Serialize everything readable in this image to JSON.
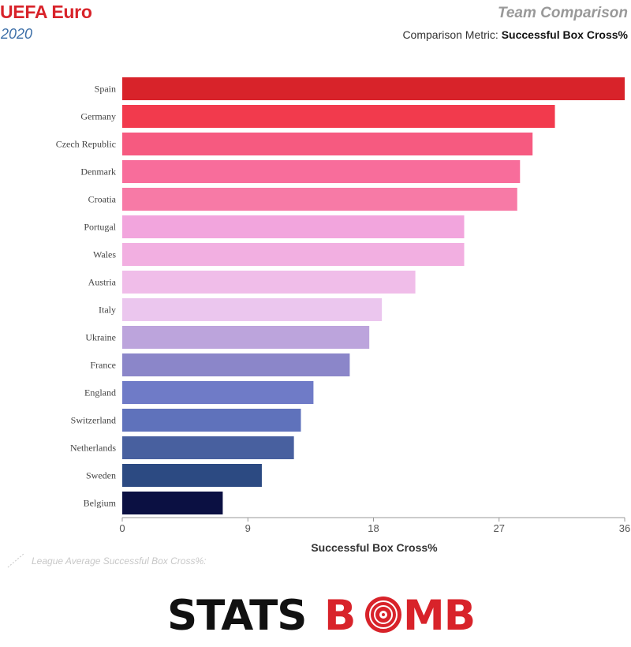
{
  "header": {
    "title": "UEFA Euro",
    "season": "2020",
    "subtitle": "Team Comparison",
    "metric_prefix": "Comparison Metric:",
    "metric_name": "Successful Box Cross%"
  },
  "league_average_label": "League Average Successful Box Cross%:",
  "logo": {
    "part1": "STATS",
    "part2": "B",
    "part3": "MB",
    "brand_color": "#d8232a"
  },
  "chart_data": {
    "type": "bar",
    "orientation": "horizontal",
    "categories": [
      "Spain",
      "Germany",
      "Czech Republic",
      "Denmark",
      "Croatia",
      "Portugal",
      "Wales",
      "Austria",
      "Italy",
      "Ukraine",
      "France",
      "England",
      "Switzerland",
      "Netherlands",
      "Sweden",
      "Belgium"
    ],
    "values": [
      36.0,
      31.0,
      29.4,
      28.5,
      28.3,
      24.5,
      24.5,
      21.0,
      18.6,
      17.7,
      16.3,
      13.7,
      12.8,
      12.3,
      10.0,
      7.2
    ],
    "colors": [
      "#d8232a",
      "#f23a4d",
      "#f65a80",
      "#f86d9b",
      "#f77aa6",
      "#f2a5dd",
      "#f2afe1",
      "#f0bde9",
      "#ebc6ee",
      "#bca4dc",
      "#8b86c9",
      "#6f7bc7",
      "#5f72bb",
      "#48609f",
      "#2c4a82",
      "#0b1042"
    ],
    "xlabel": "Successful Box Cross%",
    "xlim": [
      0,
      36
    ],
    "xticks": [
      0,
      9,
      18,
      27,
      36
    ],
    "grid": false
  }
}
